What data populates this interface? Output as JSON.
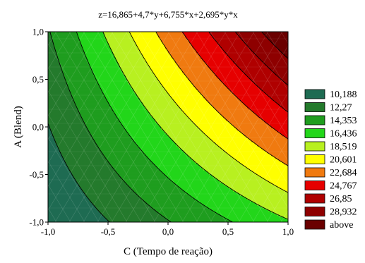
{
  "chart_data": {
    "type": "contour",
    "title": "z=16,865+4,7*y+6,755*x+2,695*y*x",
    "xlabel": "C (Tempo de reação)",
    "ylabel": "A (Blend)",
    "xlim": [
      -1.0,
      1.0
    ],
    "ylim": [
      -1.0,
      1.0
    ],
    "xticks": [
      "-1,0",
      "-0,5",
      "0,0",
      "0,5",
      "1,0"
    ],
    "yticks": [
      "1,0",
      "0,5",
      "0,0",
      "-0,5",
      "-1,0"
    ],
    "model": {
      "intercept": 16.865,
      "y": 4.7,
      "x": 6.755,
      "xy": 2.695
    },
    "levels": [
      10.188,
      12.27,
      14.353,
      16.436,
      18.519,
      20.601,
      22.684,
      24.767,
      26.85,
      28.932
    ],
    "legend": {
      "position": "right",
      "items": [
        {
          "label": "10,188",
          "color": "#1e6b52"
        },
        {
          "label": "12,27",
          "color": "#247a2c"
        },
        {
          "label": "14,353",
          "color": "#1f9d1f"
        },
        {
          "label": "16,436",
          "color": "#22d61a"
        },
        {
          "label": "18,519",
          "color": "#b8f020"
        },
        {
          "label": "20,601",
          "color": "#ffff00"
        },
        {
          "label": "22,684",
          "color": "#f07a10"
        },
        {
          "label": "24,767",
          "color": "#e60000"
        },
        {
          "label": "26,85",
          "color": "#b00000"
        },
        {
          "label": "28,932",
          "color": "#8e0000"
        },
        {
          "label": "above",
          "color": "#6a0000"
        }
      ]
    },
    "grid": false
  }
}
